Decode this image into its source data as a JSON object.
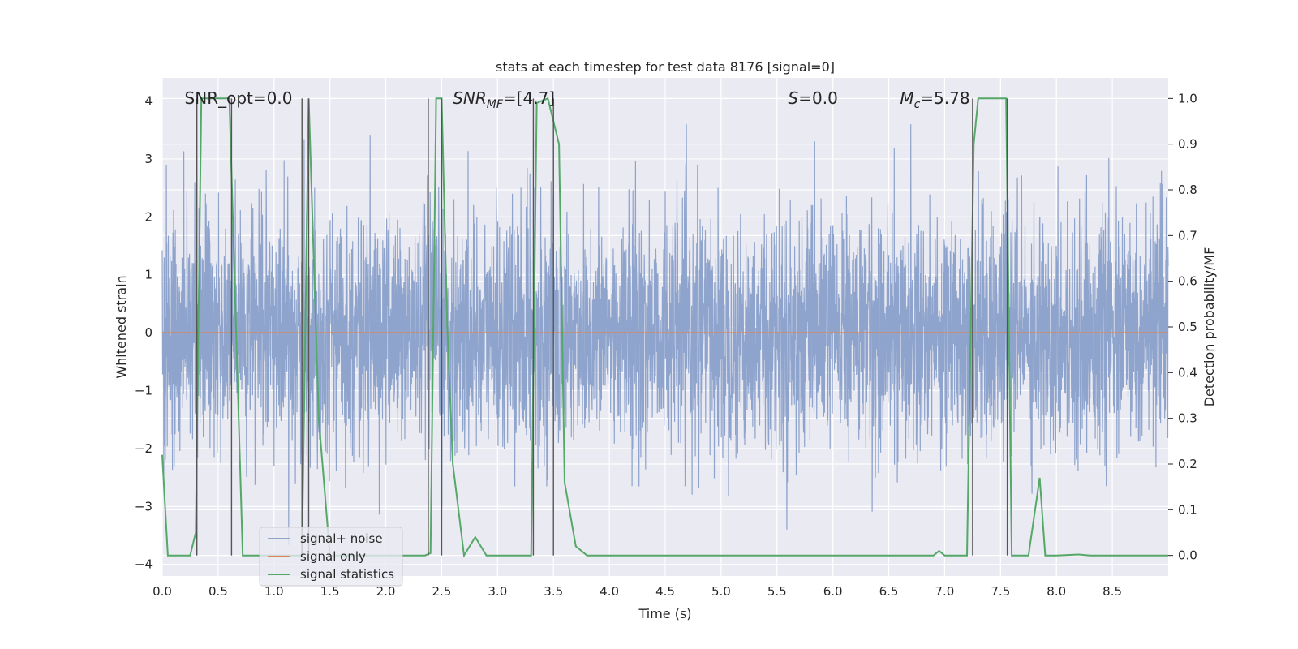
{
  "chart_data": {
    "type": "line",
    "title": "stats at each timestep for test data 8176 [signal=0]",
    "xlabel": "Time (s)",
    "ylabel_left": "Whitened strain",
    "ylabel_right": "Detection probability/MF",
    "xlim": [
      0.0,
      9.0
    ],
    "ylim_left": [
      -4.2,
      4.4
    ],
    "ylim_right": [
      -0.045,
      1.045
    ],
    "x_ticks": [
      0.0,
      0.5,
      1.0,
      1.5,
      2.0,
      2.5,
      3.0,
      3.5,
      4.0,
      4.5,
      5.0,
      5.5,
      6.0,
      6.5,
      7.0,
      7.5,
      8.0,
      8.5
    ],
    "x_tick_labels": [
      "0.0",
      "0.5",
      "1.0",
      "1.5",
      "2.0",
      "2.5",
      "3.0",
      "3.5",
      "4.0",
      "4.5",
      "5.0",
      "5.5",
      "6.0",
      "6.5",
      "7.0",
      "7.5",
      "8.0",
      "8.5"
    ],
    "y_left_ticks": [
      -4,
      -3,
      -2,
      -1,
      0,
      1,
      2,
      3,
      4
    ],
    "y_left_tick_labels": [
      "−4",
      "−3",
      "−2",
      "−1",
      "0",
      "1",
      "2",
      "3",
      "4"
    ],
    "y_right_ticks": [
      0.0,
      0.1,
      0.2,
      0.3,
      0.4,
      0.5,
      0.6,
      0.7,
      0.8,
      0.9,
      1.0
    ],
    "y_right_tick_labels": [
      "0.0",
      "0.1",
      "0.2",
      "0.3",
      "0.4",
      "0.5",
      "0.6",
      "0.7",
      "0.8",
      "0.9",
      "1.0"
    ],
    "grid": true,
    "legend_position": "lower-left",
    "annotations": [
      {
        "text": "SNR_opt=0.0",
        "x": 0.2,
        "y": 4.05
      },
      {
        "text": "SNR_MF=[4.7]",
        "x": 2.6,
        "y": 4.05
      },
      {
        "text": "S=0.0",
        "x": 5.6,
        "y": 4.05
      },
      {
        "text": "M_c=5.78",
        "x": 6.6,
        "y": 4.05
      }
    ],
    "vertical_markers": [
      0.31,
      0.62,
      1.25,
      1.31,
      2.38,
      2.5,
      3.32,
      3.5,
      7.25,
      7.56
    ],
    "series": [
      {
        "name": "signal+ noise",
        "color": "#8fa4cc",
        "axis": "left",
        "kind": "noise",
        "sigma": 1.0,
        "samples_per_second": 512
      },
      {
        "name": "signal only",
        "color": "#dd8452",
        "axis": "left",
        "x": [
          0.0,
          9.0
        ],
        "y": [
          0.0,
          0.0
        ]
      },
      {
        "name": "signal statistics",
        "color": "#55a868",
        "axis": "right",
        "x": [
          0.0,
          0.05,
          0.25,
          0.3,
          0.35,
          0.6,
          0.66,
          0.72,
          1.2,
          1.25,
          1.31,
          1.4,
          1.5,
          2.3,
          2.35,
          2.4,
          2.45,
          2.5,
          2.55,
          2.6,
          2.7,
          2.8,
          2.85,
          2.9,
          3.0,
          3.3,
          3.35,
          3.45,
          3.55,
          3.6,
          3.7,
          3.75,
          3.8,
          6.8,
          6.9,
          6.95,
          7.0,
          7.2,
          7.26,
          7.3,
          7.35,
          7.55,
          7.6,
          7.65,
          7.75,
          7.85,
          7.9,
          7.95,
          8.0,
          8.2,
          8.3,
          9.0
        ],
        "y": [
          0.22,
          0.0,
          0.0,
          0.05,
          1.0,
          1.0,
          0.5,
          0.0,
          0.0,
          0.0,
          1.0,
          0.3,
          0.0,
          0.0,
          0.0,
          0.005,
          1.0,
          1.0,
          0.5,
          0.2,
          0.0,
          0.04,
          0.02,
          0.0,
          0.0,
          0.0,
          0.99,
          1.0,
          0.9,
          0.16,
          0.02,
          0.01,
          0.0,
          0.0,
          0.0,
          0.01,
          0.0,
          0.0,
          0.9,
          1.0,
          1.0,
          1.0,
          0.0,
          0.0,
          0.0,
          0.17,
          0.0,
          0.0,
          0.0,
          0.002,
          0.0,
          0.0
        ]
      }
    ]
  }
}
